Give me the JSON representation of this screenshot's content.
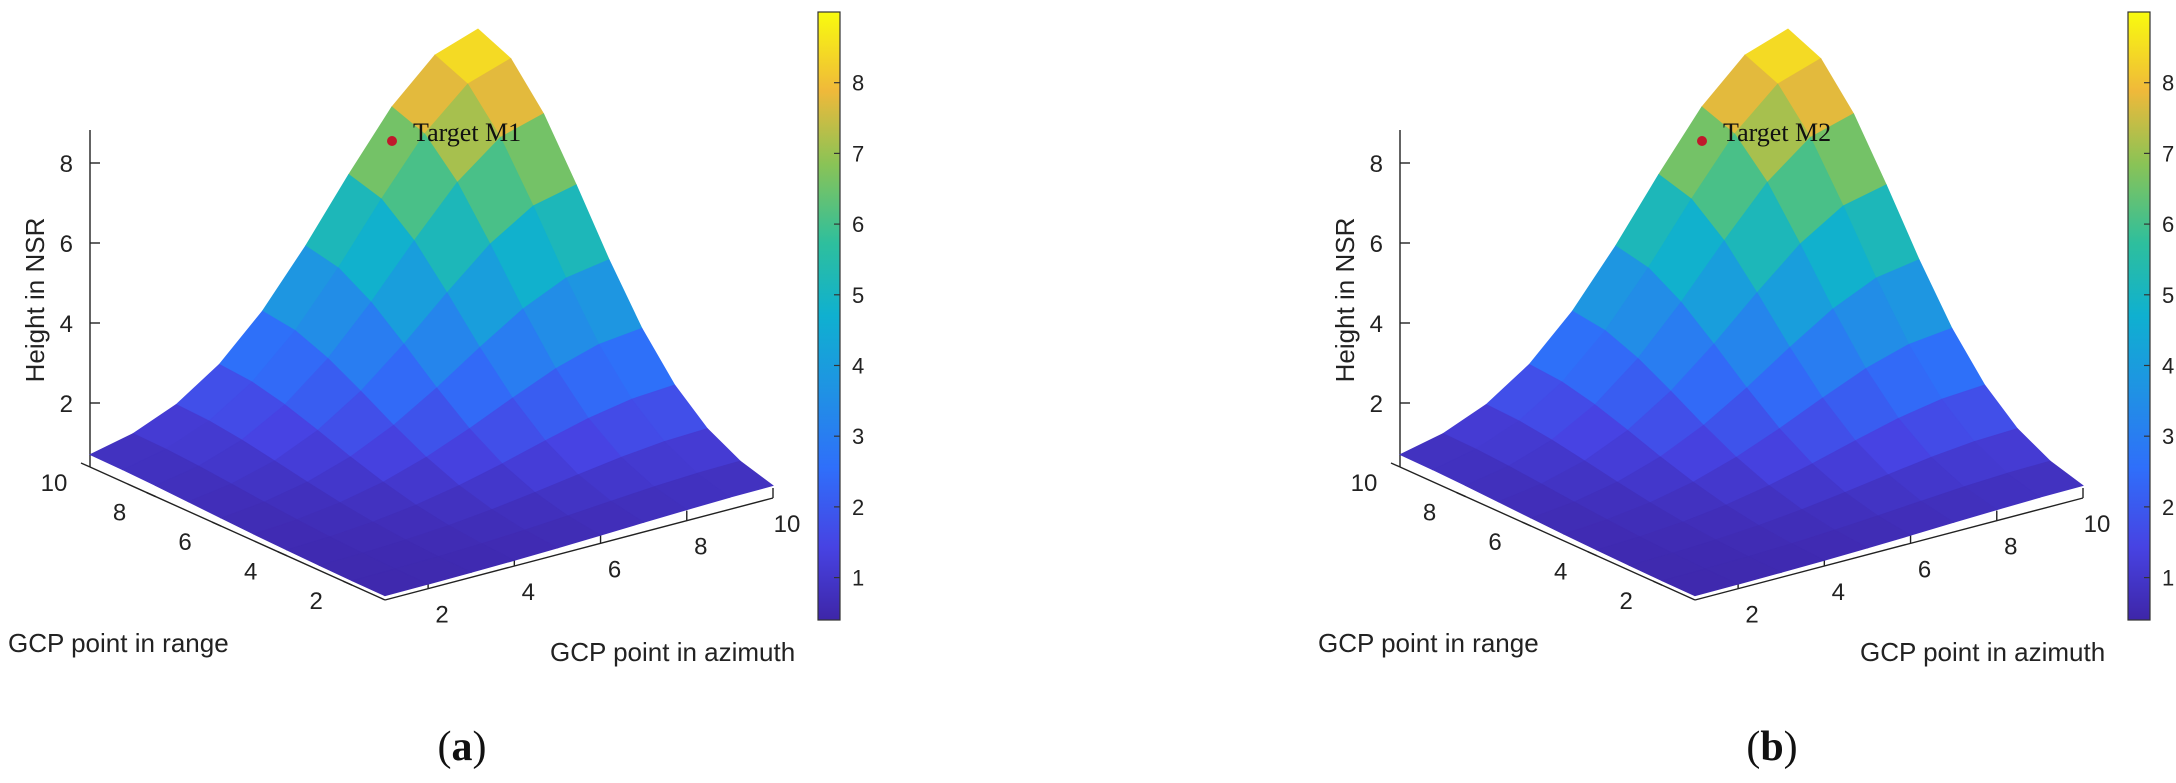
{
  "figure": {
    "panels": [
      {
        "caption": "(a)",
        "caption_letter": "a",
        "annotation": "Target M1",
        "zlabel": "Height in NSR",
        "xlabel": "GCP point in azimuth",
        "ylabel": "GCP point in range",
        "colorbar_ticks": [
          "1",
          "2",
          "3",
          "4",
          "5",
          "6",
          "7",
          "8"
        ]
      },
      {
        "caption": "(b)",
        "caption_letter": "b",
        "annotation": "Target M2",
        "zlabel": "Height in NSR",
        "xlabel": "GCP point in azimuth",
        "ylabel": "GCP point in range",
        "colorbar_ticks": [
          "1",
          "2",
          "3",
          "4",
          "5",
          "6",
          "7",
          "8"
        ]
      }
    ]
  },
  "chart_data": [
    {
      "type": "surface",
      "colormap": "parula",
      "x": [
        1,
        2,
        3,
        4,
        5,
        6,
        7,
        8,
        9,
        10
      ],
      "y": [
        1,
        2,
        3,
        4,
        5,
        6,
        7,
        8,
        9,
        10
      ],
      "xlabel": "GCP point in azimuth",
      "ylabel": "GCP point in range",
      "zlabel": "Height in NSR",
      "xticks": [
        2,
        4,
        6,
        8,
        10
      ],
      "yticks": [
        2,
        4,
        6,
        8,
        10
      ],
      "zticks": [
        2,
        4,
        6,
        8
      ],
      "zlim": [
        0.4,
        9.0
      ],
      "clim": [
        0.4,
        9.0
      ],
      "colorbar_ticks": [
        1,
        2,
        3,
        4,
        5,
        6,
        7,
        8
      ],
      "peak": {
        "x": 10,
        "y": 10,
        "z": 8.8,
        "label": "Target M1"
      }
    },
    {
      "type": "surface",
      "colormap": "parula",
      "x": [
        1,
        2,
        3,
        4,
        5,
        6,
        7,
        8,
        9,
        10
      ],
      "y": [
        1,
        2,
        3,
        4,
        5,
        6,
        7,
        8,
        9,
        10
      ],
      "xlabel": "GCP point in azimuth",
      "ylabel": "GCP point in range",
      "zlabel": "Height in NSR",
      "xticks": [
        2,
        4,
        6,
        8,
        10
      ],
      "yticks": [
        2,
        4,
        6,
        8,
        10
      ],
      "zticks": [
        2,
        4,
        6,
        8
      ],
      "zlim": [
        0.4,
        9.0
      ],
      "clim": [
        0.4,
        9.0
      ],
      "colorbar_ticks": [
        1,
        2,
        3,
        4,
        5,
        6,
        7,
        8
      ],
      "peak": {
        "x": 10,
        "y": 10,
        "z": 8.8,
        "label": "Target M2"
      }
    }
  ]
}
